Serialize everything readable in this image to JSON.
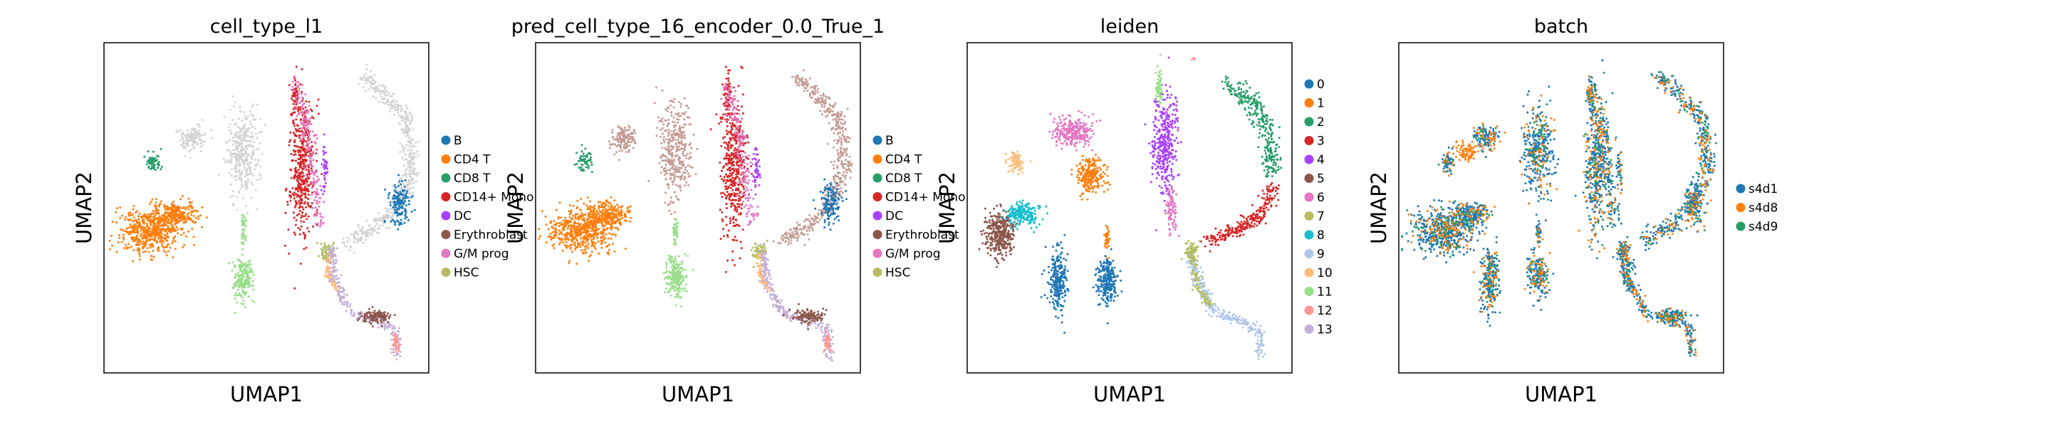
{
  "chart_data": [
    {
      "type": "scatter",
      "title": "cell_type_l1",
      "xlabel": "UMAP1",
      "ylabel": "UMAP2",
      "grid": false,
      "ticks": false,
      "legend_position": "right",
      "legend": [
        {
          "name": "B",
          "color": "#1f77b4"
        },
        {
          "name": "CD4 T",
          "color": "#ff7f0e"
        },
        {
          "name": "CD8 T",
          "color": "#279e68"
        },
        {
          "name": "CD14+ Mono",
          "color": "#d62728"
        },
        {
          "name": "DC",
          "color": "#aa40fc"
        },
        {
          "name": "Erythroblast",
          "color": "#8c564b"
        },
        {
          "name": "G/M prog",
          "color": "#e377c2"
        },
        {
          "name": "HSC",
          "color": "#b5bd61"
        }
      ]
    },
    {
      "type": "scatter",
      "title": "pred_cell_type_16_encoder_0.0_True_1",
      "xlabel": "UMAP1",
      "ylabel": "UMAP2",
      "grid": false,
      "ticks": false,
      "legend_position": "right",
      "legend": [
        {
          "name": "B",
          "color": "#1f77b4"
        },
        {
          "name": "CD4 T",
          "color": "#ff7f0e"
        },
        {
          "name": "CD8 T",
          "color": "#279e68"
        },
        {
          "name": "CD14+ Mono",
          "color": "#d62728"
        },
        {
          "name": "DC",
          "color": "#aa40fc"
        },
        {
          "name": "Erythroblast",
          "color": "#8c564b"
        },
        {
          "name": "G/M prog",
          "color": "#e377c2"
        },
        {
          "name": "HSC",
          "color": "#b5bd61"
        }
      ]
    },
    {
      "type": "scatter",
      "title": "leiden",
      "xlabel": "UMAP1",
      "ylabel": "UMAP2",
      "grid": false,
      "ticks": false,
      "legend_position": "right",
      "legend": [
        {
          "name": "0",
          "color": "#1f77b4"
        },
        {
          "name": "1",
          "color": "#ff7f0e"
        },
        {
          "name": "2",
          "color": "#279e68"
        },
        {
          "name": "3",
          "color": "#d62728"
        },
        {
          "name": "4",
          "color": "#aa40fc"
        },
        {
          "name": "5",
          "color": "#8c564b"
        },
        {
          "name": "6",
          "color": "#e377c2"
        },
        {
          "name": "7",
          "color": "#b5bd61"
        },
        {
          "name": "8",
          "color": "#17becf"
        },
        {
          "name": "9",
          "color": "#aec7e8"
        },
        {
          "name": "10",
          "color": "#ffbb78"
        },
        {
          "name": "11",
          "color": "#98df8a"
        },
        {
          "name": "12",
          "color": "#ff9896"
        },
        {
          "name": "13",
          "color": "#c5b0d5"
        }
      ]
    },
    {
      "type": "scatter",
      "title": "batch",
      "xlabel": "UMAP1",
      "ylabel": "UMAP2",
      "grid": false,
      "ticks": false,
      "legend_position": "right",
      "legend": [
        {
          "name": "s4d1",
          "color": "#1f77b4"
        },
        {
          "name": "s4d8",
          "color": "#ff7f0e"
        },
        {
          "name": "s4d9",
          "color": "#279e68"
        }
      ]
    }
  ]
}
